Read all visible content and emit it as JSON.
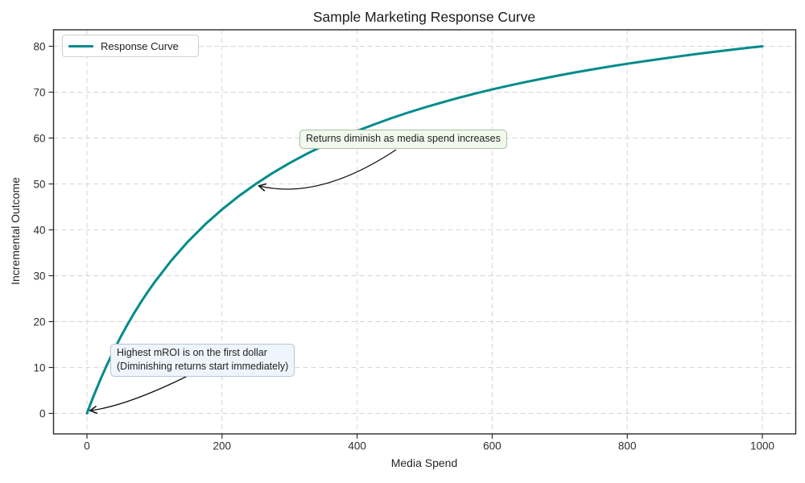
{
  "chart_data": {
    "type": "line",
    "title": "Sample Marketing Response Curve",
    "xlabel": "Media Spend",
    "ylabel": "Incremental Outcome",
    "xlim": [
      0,
      1000
    ],
    "ylim": [
      0,
      80
    ],
    "x_ticks": [
      0,
      200,
      400,
      600,
      800,
      1000
    ],
    "y_ticks": [
      0,
      10,
      20,
      30,
      40,
      50,
      60,
      70,
      80
    ],
    "grid": true,
    "legend": {
      "position": "upper-left",
      "entries": [
        {
          "label": "Response Curve",
          "color": "#008b8b"
        }
      ]
    },
    "series": [
      {
        "name": "Response Curve",
        "color": "#008b8b",
        "x": [
          0,
          5,
          10,
          20,
          30,
          40,
          50,
          60,
          70,
          80,
          90,
          100,
          125,
          150,
          175,
          200,
          225,
          250,
          275,
          300,
          325,
          350,
          375,
          400,
          425,
          450,
          475,
          500,
          525,
          550,
          575,
          600,
          625,
          650,
          675,
          700,
          725,
          750,
          775,
          800,
          825,
          850,
          875,
          900,
          925,
          950,
          975,
          1000
        ],
        "y": [
          0,
          1.96,
          3.85,
          7.41,
          10.71,
          13.79,
          16.67,
          19.35,
          21.88,
          24.24,
          26.47,
          28.57,
          33.33,
          37.5,
          41.18,
          44.44,
          47.37,
          50,
          52.38,
          54.55,
          56.52,
          58.33,
          60,
          61.54,
          62.96,
          64.29,
          65.52,
          66.67,
          67.74,
          68.75,
          69.7,
          70.59,
          71.43,
          72.22,
          72.97,
          73.68,
          74.36,
          75,
          75.61,
          76.19,
          76.74,
          77.27,
          77.78,
          78.26,
          78.72,
          79.17,
          79.59,
          80
        ]
      }
    ],
    "annotations": [
      {
        "text": "Returns diminish as media spend increases",
        "target_xy": [
          250,
          50
        ],
        "box_xy": [
          314.7,
          61.8
        ],
        "box_bg": "#f1f9ec",
        "box_border": "#a9bda6"
      },
      {
        "text": "Highest mROI is on the first dollar\n(Diminishing returns start immediately)",
        "target_xy": [
          0,
          0
        ],
        "box_xy": [
          34.6,
          15.2
        ],
        "box_bg": "#eef5fc",
        "box_border": "#b6c5d4"
      }
    ],
    "colors": {
      "curve": "#008b8b",
      "grid": "#d6d6d6",
      "spine": "#2b2b2b",
      "arrow": "#111111"
    }
  }
}
